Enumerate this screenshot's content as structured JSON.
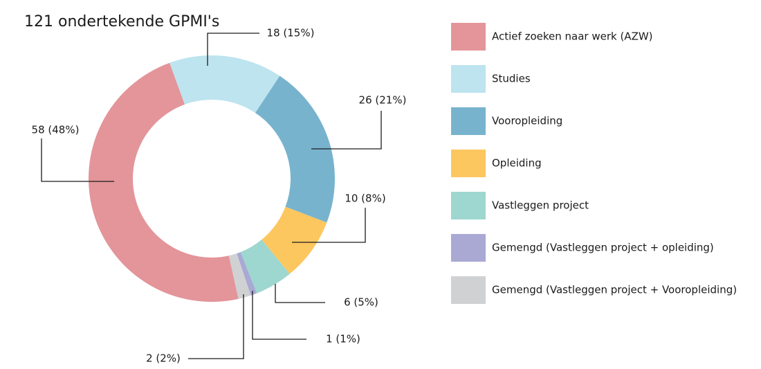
{
  "chart_data": {
    "type": "donut",
    "title": "121 ondertekende GPMI's",
    "categories": [
      "Actief zoeken naar werk (AZW)",
      "Studies",
      "Vooropleiding",
      "Opleiding",
      "Vastleggen project",
      "Gemengd (Vastleggen project + opleiding)",
      "Gemengd (Vastleggen project + Vooropleiding)"
    ],
    "values": [
      58,
      18,
      26,
      10,
      6,
      1,
      2
    ],
    "value_labels": [
      "58 (48%)",
      "18 (15%)",
      "26 (21%)",
      "10 (8%)",
      "6 (5%)",
      "1 (1%)",
      "2 (2%)"
    ],
    "colors": [
      "#e3959a",
      "#bde4ef",
      "#78b3ce",
      "#fdc75f",
      "#9dd7cf",
      "#a9a9d4",
      "#d0d1d3"
    ]
  }
}
